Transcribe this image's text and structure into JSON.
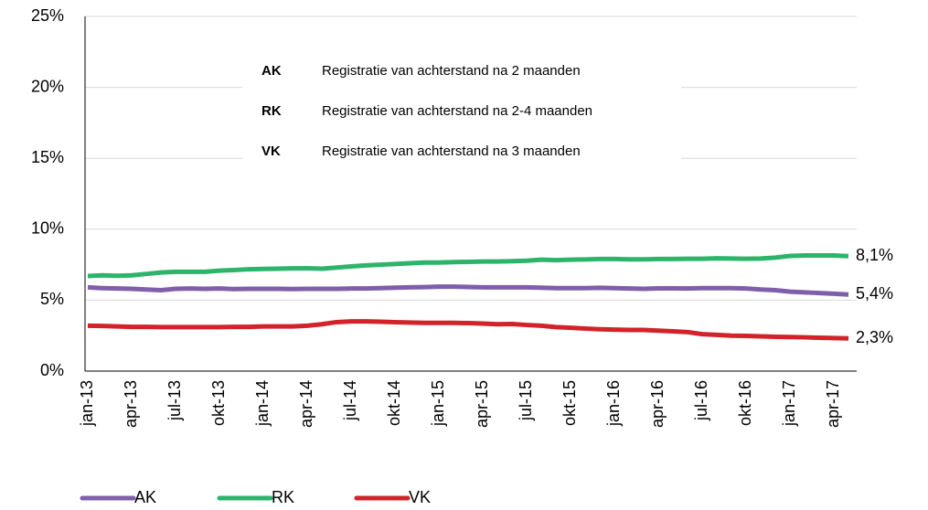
{
  "chart_data": {
    "type": "line",
    "categories": [
      "jan-13",
      null,
      null,
      "apr-13",
      null,
      null,
      "jul-13",
      null,
      null,
      "okt-13",
      null,
      null,
      "jan-14",
      null,
      null,
      "apr-14",
      null,
      null,
      "jul-14",
      null,
      null,
      "okt-14",
      null,
      null,
      "jan-15",
      null,
      null,
      "apr-15",
      null,
      null,
      "jul-15",
      null,
      null,
      "okt-15",
      null,
      null,
      "jan-16",
      null,
      null,
      "apr-16",
      null,
      null,
      "jul-16",
      null,
      null,
      "okt-16",
      null,
      null,
      "jan-17",
      null,
      null,
      "apr-17",
      null
    ],
    "series": [
      {
        "name": "AK",
        "color": "#7f5fa9",
        "values": [
          5.9,
          5.85,
          5.82,
          5.8,
          5.75,
          5.7,
          5.8,
          5.82,
          5.8,
          5.82,
          5.78,
          5.8,
          5.8,
          5.8,
          5.78,
          5.8,
          5.8,
          5.8,
          5.82,
          5.82,
          5.85,
          5.88,
          5.9,
          5.92,
          5.95,
          5.95,
          5.93,
          5.9,
          5.9,
          5.9,
          5.9,
          5.88,
          5.85,
          5.85,
          5.85,
          5.87,
          5.85,
          5.82,
          5.8,
          5.83,
          5.83,
          5.82,
          5.85,
          5.85,
          5.85,
          5.82,
          5.75,
          5.7,
          5.6,
          5.55,
          5.5,
          5.45,
          5.4
        ],
        "value_labels": [
          null,
          null,
          null,
          null,
          null,
          null,
          null,
          null,
          null,
          null,
          null,
          null,
          null,
          null,
          null,
          null,
          null,
          null,
          null,
          null,
          null,
          null,
          null,
          null,
          null,
          null,
          null,
          null,
          null,
          null,
          null,
          null,
          null,
          null,
          null,
          null,
          null,
          null,
          null,
          null,
          null,
          null,
          null,
          null,
          null,
          null,
          null,
          null,
          null,
          null,
          null,
          null,
          "5,4%"
        ]
      },
      {
        "name": "RK",
        "color": "#2db46b",
        "values": [
          6.7,
          6.75,
          6.72,
          6.75,
          6.85,
          6.95,
          7.0,
          7.0,
          7.0,
          7.08,
          7.12,
          7.18,
          7.2,
          7.22,
          7.24,
          7.25,
          7.22,
          7.3,
          7.38,
          7.45,
          7.5,
          7.55,
          7.6,
          7.65,
          7.65,
          7.68,
          7.7,
          7.72,
          7.72,
          7.75,
          7.78,
          7.85,
          7.82,
          7.85,
          7.87,
          7.9,
          7.9,
          7.88,
          7.88,
          7.9,
          7.9,
          7.92,
          7.92,
          7.95,
          7.93,
          7.92,
          7.93,
          8.0,
          8.12,
          8.15,
          8.15,
          8.15,
          8.1
        ],
        "value_labels": [
          null,
          null,
          null,
          null,
          null,
          null,
          null,
          null,
          null,
          null,
          null,
          null,
          null,
          null,
          null,
          null,
          null,
          null,
          null,
          null,
          null,
          null,
          null,
          null,
          null,
          null,
          null,
          null,
          null,
          null,
          null,
          null,
          null,
          null,
          null,
          null,
          null,
          null,
          null,
          null,
          null,
          null,
          null,
          null,
          null,
          null,
          null,
          null,
          null,
          null,
          null,
          null,
          "8,1%"
        ]
      },
      {
        "name": "VK",
        "color": "#d2232a",
        "values": [
          3.2,
          3.18,
          3.15,
          3.12,
          3.12,
          3.1,
          3.1,
          3.1,
          3.1,
          3.1,
          3.12,
          3.12,
          3.15,
          3.15,
          3.15,
          3.2,
          3.3,
          3.45,
          3.5,
          3.5,
          3.48,
          3.45,
          3.42,
          3.4,
          3.4,
          3.4,
          3.38,
          3.35,
          3.3,
          3.32,
          3.25,
          3.2,
          3.1,
          3.05,
          3.0,
          2.95,
          2.92,
          2.9,
          2.9,
          2.85,
          2.8,
          2.75,
          2.6,
          2.55,
          2.5,
          2.48,
          2.45,
          2.42,
          2.4,
          2.38,
          2.35,
          2.33,
          2.3
        ],
        "value_labels": [
          null,
          null,
          null,
          null,
          null,
          null,
          null,
          null,
          null,
          null,
          null,
          null,
          null,
          null,
          null,
          null,
          null,
          null,
          null,
          null,
          null,
          null,
          null,
          null,
          null,
          null,
          null,
          null,
          null,
          null,
          null,
          null,
          null,
          null,
          null,
          null,
          null,
          null,
          null,
          null,
          null,
          null,
          null,
          null,
          null,
          null,
          null,
          null,
          null,
          null,
          null,
          null,
          "2,3%"
        ]
      }
    ],
    "ylim": [
      0,
      25
    ],
    "yticks": [
      {
        "value": 0,
        "label": "0%"
      },
      {
        "value": 5,
        "label": "5%"
      },
      {
        "value": 10,
        "label": "10%"
      },
      {
        "value": 15,
        "label": "15%"
      },
      {
        "value": 20,
        "label": "20%"
      },
      {
        "value": 25,
        "label": "25%"
      }
    ],
    "grid": true,
    "legend": "bottom",
    "annotations": [
      {
        "abbreviation": "AK",
        "text": "Registratie van achterstand na 2 maanden"
      },
      {
        "abbreviation": "RK",
        "text": "Registratie van achterstand na 2-4 maanden"
      },
      {
        "abbreviation": "VK",
        "text": "Registratie van achterstand na 3 maanden"
      }
    ]
  }
}
